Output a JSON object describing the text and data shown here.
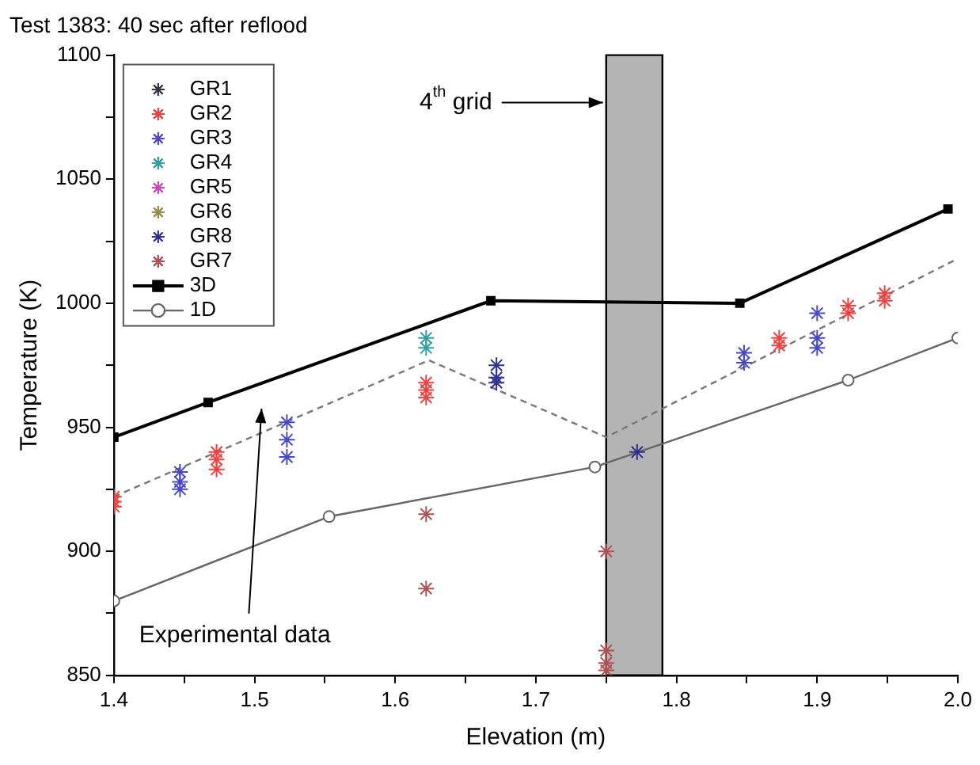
{
  "chart_data": {
    "type": "scatter",
    "title": "Test 1383: 40 sec after reflood",
    "xlabel": "Elevation (m)",
    "ylabel": "Temperature (K)",
    "xlim": [
      1.4,
      2.0
    ],
    "ylim": [
      850,
      1100
    ],
    "xticks": [
      1.4,
      {
        "value": 1.45,
        "label": null
      },
      1.5,
      {
        "value": 1.55,
        "label": null
      },
      1.6,
      {
        "value": 1.65,
        "label": null
      },
      1.7,
      {
        "value": 1.75,
        "label": null
      },
      1.8,
      {
        "value": 1.85,
        "label": null
      },
      1.9,
      {
        "value": 1.95,
        "label": null
      },
      {
        "value": 2.0,
        "label": "2.0"
      }
    ],
    "yticks": [
      850,
      {
        "value": 875,
        "label": null
      },
      900,
      {
        "value": 925,
        "label": null
      },
      950,
      {
        "value": 975,
        "label": null
      },
      1000,
      {
        "value": 1025,
        "label": null
      },
      1050,
      {
        "value": 1075,
        "label": null
      },
      1100
    ],
    "grid": false,
    "legend": "top left",
    "series": [
      {
        "name": "GR1",
        "type": "scatter",
        "marker": "cross",
        "color": "#333344"
      },
      {
        "name": "GR2",
        "type": "scatter",
        "marker": "cross",
        "color": "#f04040",
        "x": [
          1.4,
          1.4,
          1.4,
          1.473,
          1.473,
          1.473,
          1.622,
          1.622,
          1.622,
          1.873,
          1.873,
          1.922,
          1.922,
          1.948,
          1.948
        ],
        "values": [
          922,
          920,
          918,
          940,
          937,
          933,
          968,
          965,
          962,
          986,
          983,
          999,
          996,
          1004,
          1001
        ]
      },
      {
        "name": "GR3",
        "type": "scatter",
        "marker": "cross",
        "color": "#4848c8",
        "x": [
          1.447,
          1.447,
          1.447,
          1.523,
          1.523,
          1.523,
          1.848,
          1.848,
          1.9,
          1.9,
          1.9
        ],
        "values": [
          932,
          928,
          925,
          952,
          945,
          938,
          980,
          976,
          996,
          986,
          982
        ]
      },
      {
        "name": "GR4",
        "type": "scatter",
        "marker": "cross",
        "color": "#30a0a0",
        "x": [
          1.622,
          1.622
        ],
        "values": [
          986,
          982
        ]
      },
      {
        "name": "GR5",
        "type": "scatter",
        "marker": "cross",
        "color": "#d040c0"
      },
      {
        "name": "GR6",
        "type": "scatter",
        "marker": "cross",
        "color": "#909040"
      },
      {
        "name": "GR8",
        "type": "scatter",
        "marker": "cross",
        "color": "#303090",
        "x": [
          1.672,
          1.672,
          1.672,
          1.772
        ],
        "values": [
          975,
          970,
          968,
          940
        ]
      },
      {
        "name": "GR7",
        "type": "scatter",
        "marker": "cross",
        "color": "#b05050",
        "x": [
          1.622,
          1.622,
          1.75,
          1.75,
          1.75,
          1.75
        ],
        "values": [
          915,
          885,
          900,
          860,
          855,
          852
        ]
      },
      {
        "name": "3D",
        "type": "line",
        "marker": "square",
        "line_style": "solid",
        "color": "#000000",
        "x": [
          1.4,
          1.467,
          1.668,
          1.845,
          1.993
        ],
        "values": [
          946,
          960,
          1001,
          1000,
          1038
        ]
      },
      {
        "name": "1D",
        "type": "line",
        "marker": "circle",
        "line_style": "solid",
        "color": "#666666",
        "x": [
          1.4,
          1.553,
          1.742,
          1.922,
          2.0
        ],
        "values": [
          880,
          914,
          934,
          969,
          986
        ]
      },
      {
        "type": "line",
        "marker": "none",
        "line_style": "dashed",
        "color": "#777777",
        "x": [
          1.4,
          1.624,
          1.75,
          2.0
        ],
        "values": [
          922,
          977,
          946,
          1018
        ]
      }
    ],
    "bands": [
      {
        "axis": "x",
        "from": 1.75,
        "to": 1.79,
        "label": "4$^{th}$ grid",
        "color": "#b4b4b4"
      }
    ],
    "annotations": [
      "Experimental data"
    ]
  }
}
